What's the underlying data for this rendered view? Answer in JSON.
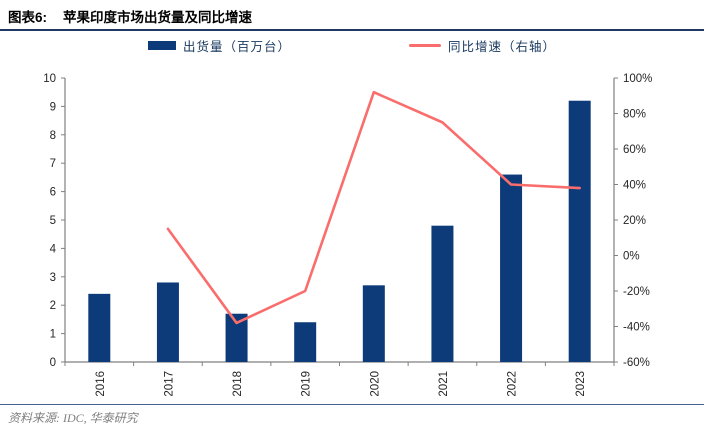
{
  "header": {
    "label": "图表6:",
    "title": "苹果印度市场出货量及同比增速"
  },
  "legend": {
    "items": [
      {
        "label": "出货量（百万台）",
        "swatch": "bar-swatch",
        "color": "#0d3b7a"
      },
      {
        "label": "同比增速（右轴）",
        "swatch": "line-swatch",
        "color": "#f96d6c"
      }
    ]
  },
  "footer": {
    "text": "资料来源: IDC, 华泰研究"
  },
  "colors": {
    "bar": "#0d3b7a",
    "line": "#f96d6c",
    "legend_text": "#17375e",
    "axis": "#808080",
    "tick_label": "#262626",
    "title_rule": "#1f3864",
    "footer_rule": "#44618f",
    "footer_text": "#7f7f7f"
  },
  "chart_data": {
    "type": "bar",
    "subtype": "bar+line combo",
    "title": "苹果印度市场出货量及同比增速",
    "categories": [
      "2016",
      "2017",
      "2018",
      "2019",
      "2020",
      "2021",
      "2022",
      "2023"
    ],
    "series": [
      {
        "name": "出货量（百万台）",
        "type": "bar",
        "axis": "left",
        "values": [
          2.4,
          2.8,
          1.7,
          1.4,
          2.7,
          4.8,
          6.6,
          9.2
        ]
      },
      {
        "name": "同比增速（右轴）",
        "type": "line",
        "axis": "right",
        "unit": "%",
        "values": [
          null,
          15,
          -38,
          -20,
          92,
          75,
          40,
          38
        ]
      }
    ],
    "left_axis": {
      "min": 0,
      "max": 10,
      "step": 1
    },
    "right_axis": {
      "min": -60,
      "max": 100,
      "step": 20,
      "format": "percent"
    },
    "grid": false,
    "legend_position": "top"
  }
}
